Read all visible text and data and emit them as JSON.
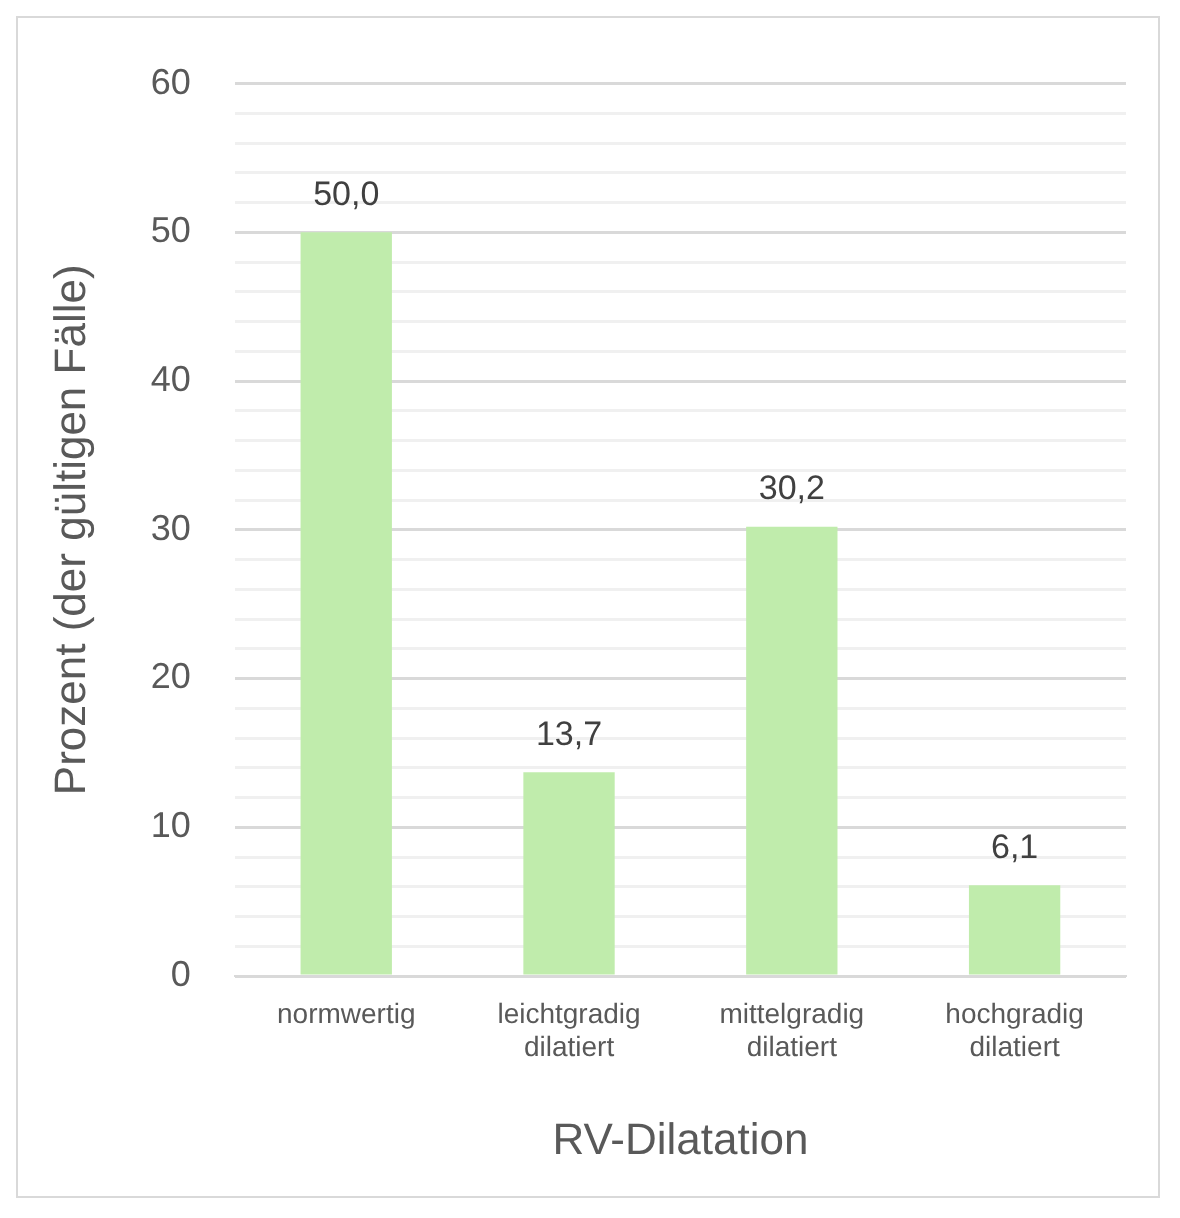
{
  "chart_data": {
    "type": "bar",
    "xlabel": "RV-Dilatation",
    "ylabel": "Prozent (der gültigen Fälle)",
    "categories": [
      "normwertig",
      "leichtgradig dilatiert",
      "mittelgradig dilatiert",
      "hochgradig dilatiert"
    ],
    "values": [
      50.0,
      13.7,
      30.2,
      6.1
    ],
    "value_labels": [
      "50,0",
      "13,7",
      "30,2",
      "6,1"
    ],
    "color": "#c0ecac",
    "ylim": [
      0,
      60
    ],
    "yticks": [
      0,
      {
        "value": 2,
        "label": null
      },
      {
        "value": 4,
        "label": null
      },
      {
        "value": 6,
        "label": null
      },
      {
        "value": 8,
        "label": null
      },
      10,
      {
        "value": 12,
        "label": null
      },
      {
        "value": 14,
        "label": null
      },
      {
        "value": 16,
        "label": null
      },
      {
        "value": 18,
        "label": null
      },
      20,
      {
        "value": 22,
        "label": null
      },
      {
        "value": 24,
        "label": null
      },
      {
        "value": 26,
        "label": null
      },
      {
        "value": 28,
        "label": null
      },
      30,
      {
        "value": 32,
        "label": null
      },
      {
        "value": 34,
        "label": null
      },
      {
        "value": 36,
        "label": null
      },
      {
        "value": 38,
        "label": null
      },
      40,
      {
        "value": 42,
        "label": null
      },
      {
        "value": 44,
        "label": null
      },
      {
        "value": 46,
        "label": null
      },
      {
        "value": 48,
        "label": null
      },
      50,
      {
        "value": 52,
        "label": null
      },
      {
        "value": 54,
        "label": null
      },
      {
        "value": 56,
        "label": null
      },
      {
        "value": 58,
        "label": null
      },
      60
    ],
    "grid": "y",
    "legend": false
  }
}
